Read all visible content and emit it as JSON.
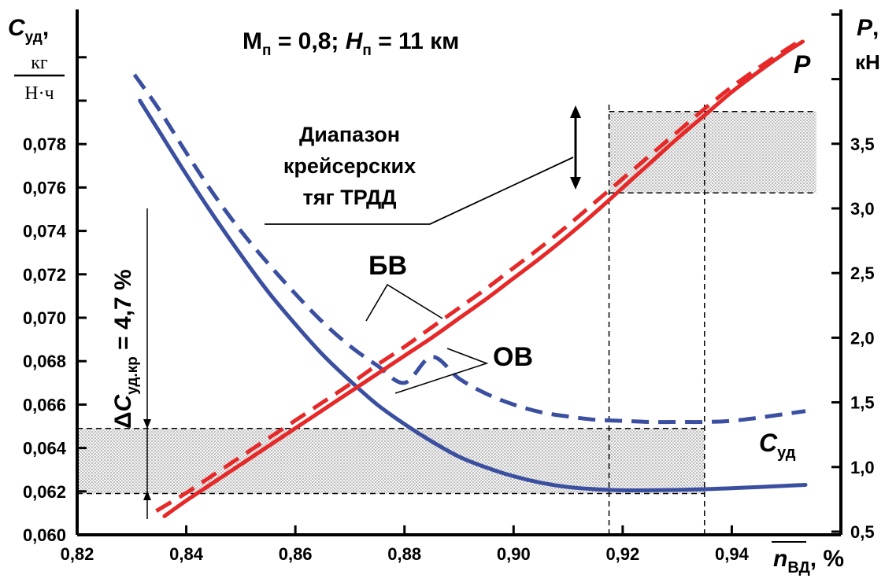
{
  "chart_data": {
    "type": "line",
    "title": "Mп = 0,8; Hп = 11 км",
    "title_parts": {
      "m": "M",
      "m_sub": "п",
      "m_val": " = 0,8; ",
      "h": "H",
      "h_sub": "п",
      "h_val": " = 11 км"
    },
    "xlim": [
      0.82,
      0.96
    ],
    "ylim_left": [
      0.06,
      0.082
    ],
    "ylim_right": [
      0.5,
      4.0
    ],
    "x_ticks": [
      0.82,
      0.84,
      0.86,
      0.88,
      0.9,
      0.92,
      0.94
    ],
    "x_tick_labels": [
      "0,82",
      "0,84",
      "0,86",
      "0,88",
      "0,90",
      "0,92",
      "0,94"
    ],
    "y_left_ticks": [
      0.06,
      0.062,
      0.064,
      0.066,
      0.068,
      0.07,
      0.072,
      0.074,
      0.076,
      0.078
    ],
    "y_left_tick_labels": [
      "0,060",
      "0,062",
      "0,064",
      "0,066",
      "0,068",
      "0,070",
      "0,072",
      "0,074",
      "0,076",
      "0,078"
    ],
    "y_right_ticks": [
      0.5,
      1.0,
      1.5,
      2.0,
      2.5,
      3.0,
      3.5
    ],
    "y_right_tick_labels": [
      "0,5",
      "1,0",
      "1,5",
      "2,0",
      "2,5",
      "3,0",
      "3,5"
    ],
    "left_axis_label": {
      "c": "C",
      "c_sub": "уд",
      "comma": ",",
      "num": "кг",
      "den": "Н·ч"
    },
    "right_axis_label": {
      "p": "P",
      "comma": ",",
      "unit": "кН"
    },
    "x_axis_label": {
      "n": "n",
      "sub": "ВД",
      "suffix": ", %"
    },
    "series": [
      {
        "name": "Cуд ОВ",
        "axis": "left",
        "color": "#3b4fa0",
        "style": "solid",
        "x": [
          0.8315,
          0.835,
          0.84,
          0.845,
          0.85,
          0.855,
          0.86,
          0.865,
          0.87,
          0.875,
          0.88,
          0.885,
          0.89,
          0.895,
          0.9,
          0.905,
          0.91,
          0.915,
          0.92,
          0.925,
          0.93,
          0.935,
          0.94,
          0.945,
          0.9535
        ],
        "y": [
          0.08,
          0.0786,
          0.0766,
          0.0747,
          0.0729,
          0.0712,
          0.0697,
          0.0683,
          0.0671,
          0.066,
          0.0651,
          0.0643,
          0.0636,
          0.0631,
          0.0627,
          0.0624,
          0.0622,
          0.0621,
          0.06205,
          0.06205,
          0.06207,
          0.0621,
          0.06215,
          0.0622,
          0.0623
        ]
      },
      {
        "name": "Cуд БВ",
        "axis": "left",
        "color": "#3b4fa0",
        "style": "dashed",
        "x": [
          0.8305,
          0.835,
          0.84,
          0.845,
          0.85,
          0.855,
          0.86,
          0.865,
          0.87,
          0.875,
          0.88,
          0.885,
          0.89,
          0.895,
          0.9,
          0.905,
          0.91,
          0.915,
          0.92,
          0.925,
          0.93,
          0.935,
          0.94,
          0.945,
          0.9535
        ],
        "y": [
          0.0812,
          0.0796,
          0.0776,
          0.0757,
          0.074,
          0.0725,
          0.0711,
          0.0698,
          0.0687,
          0.0678,
          0.067,
          0.0682,
          0.0672,
          0.0665,
          0.066,
          0.06565,
          0.06545,
          0.0653,
          0.06525,
          0.0652,
          0.0652,
          0.0652,
          0.06525,
          0.0654,
          0.0657
        ]
      },
      {
        "name": "P ОВ",
        "axis": "right",
        "color": "#e62828",
        "style": "solid",
        "x": [
          0.836,
          0.84,
          0.845,
          0.85,
          0.855,
          0.86,
          0.865,
          0.87,
          0.875,
          0.88,
          0.885,
          0.89,
          0.895,
          0.9,
          0.905,
          0.91,
          0.915,
          0.92,
          0.925,
          0.93,
          0.935,
          0.94,
          0.945,
          0.95,
          0.953
        ],
        "y": [
          0.62,
          0.74,
          0.88,
          1.02,
          1.16,
          1.3,
          1.44,
          1.58,
          1.72,
          1.86,
          2.0,
          2.15,
          2.3,
          2.46,
          2.62,
          2.79,
          2.97,
          3.16,
          3.35,
          3.54,
          3.72,
          3.9,
          4.06,
          4.21,
          4.29
        ]
      },
      {
        "name": "P БВ",
        "axis": "right",
        "color": "#e62828",
        "style": "dashed",
        "x": [
          0.8345,
          0.84,
          0.845,
          0.85,
          0.855,
          0.86,
          0.865,
          0.87,
          0.875,
          0.88,
          0.885,
          0.89,
          0.895,
          0.9,
          0.905,
          0.91,
          0.915,
          0.92,
          0.925,
          0.93,
          0.935,
          0.94,
          0.945,
          0.95,
          0.953
        ],
        "y": [
          0.66,
          0.8,
          0.94,
          1.08,
          1.22,
          1.36,
          1.5,
          1.64,
          1.79,
          1.93,
          2.08,
          2.23,
          2.38,
          2.54,
          2.7,
          2.87,
          3.05,
          3.23,
          3.41,
          3.59,
          3.77,
          3.94,
          4.09,
          4.23,
          4.31
        ]
      }
    ],
    "shaded_bands": [
      {
        "axis": "left",
        "x_from": 0.82,
        "x_to": 0.935,
        "y_from": 0.0619,
        "y_to": 0.0649
      },
      {
        "axis": "right",
        "x_from": 0.9175,
        "x_to": 0.9555,
        "y_from": 3.12,
        "y_to": 3.75
      }
    ],
    "vertical_guides": [
      0.9175,
      0.935
    ],
    "annotations": {
      "range_label": [
        "Диапазон",
        "крейсерских",
        "тяг ТРДД"
      ],
      "bv_label": "БВ",
      "ov_label": "ОВ",
      "p_label": "P",
      "csp_label": {
        "c": "C",
        "sub": "уд"
      },
      "delta_label": {
        "prefix": "Δ",
        "c": "C",
        "sub": "уд.кр",
        "suffix": " = 4,7 %"
      }
    },
    "grid": false,
    "legend": "none"
  }
}
